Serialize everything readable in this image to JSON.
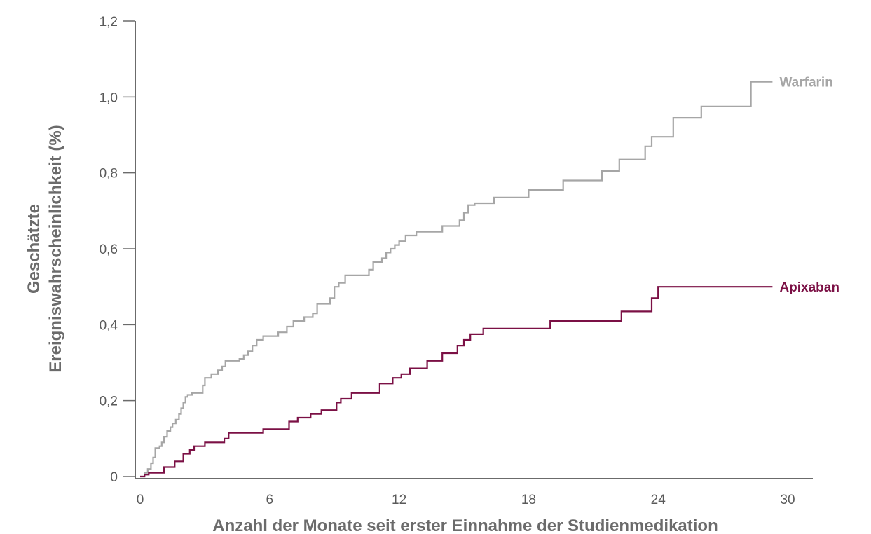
{
  "chart_data": {
    "type": "line",
    "step": true,
    "xlabel": "Anzahl der Monate seit erster Einnahme der Studienmedikation",
    "ylabel": [
      "Geschätzte",
      "Ereigniswahrscheinlichkeit (%)"
    ],
    "xlim": [
      0,
      30
    ],
    "ylim": [
      0,
      1.2
    ],
    "x_ticks": [
      {
        "value": 0,
        "label": "0"
      },
      {
        "value": 6,
        "label": "6"
      },
      {
        "value": 12,
        "label": "12"
      },
      {
        "value": 18,
        "label": "18"
      },
      {
        "value": 24,
        "label": "24"
      },
      {
        "value": 30,
        "label": "30"
      }
    ],
    "y_ticks": [
      {
        "value": 0,
        "label": "0"
      },
      {
        "value": 0.2,
        "label": "0,2"
      },
      {
        "value": 0.4,
        "label": "0,4"
      },
      {
        "value": 0.6,
        "label": "0,6"
      },
      {
        "value": 0.8,
        "label": "0,8"
      },
      {
        "value": 1.0,
        "label": "1,0"
      },
      {
        "value": 1.2,
        "label": "1,2"
      }
    ],
    "grid": false,
    "series": [
      {
        "name": "Warfarin",
        "color": "#a6a6a6",
        "points": [
          [
            0,
            0
          ],
          [
            0.2,
            0.01
          ],
          [
            0.35,
            0.02
          ],
          [
            0.5,
            0.035
          ],
          [
            0.6,
            0.05
          ],
          [
            0.7,
            0.075
          ],
          [
            0.9,
            0.08
          ],
          [
            1.0,
            0.09
          ],
          [
            1.1,
            0.105
          ],
          [
            1.25,
            0.12
          ],
          [
            1.4,
            0.13
          ],
          [
            1.5,
            0.14
          ],
          [
            1.65,
            0.15
          ],
          [
            1.8,
            0.165
          ],
          [
            1.9,
            0.18
          ],
          [
            2.0,
            0.195
          ],
          [
            2.1,
            0.21
          ],
          [
            2.2,
            0.215
          ],
          [
            2.4,
            0.22
          ],
          [
            2.9,
            0.24
          ],
          [
            3.0,
            0.26
          ],
          [
            3.3,
            0.27
          ],
          [
            3.6,
            0.28
          ],
          [
            3.8,
            0.29
          ],
          [
            3.95,
            0.305
          ],
          [
            4.6,
            0.31
          ],
          [
            4.8,
            0.32
          ],
          [
            5.0,
            0.33
          ],
          [
            5.2,
            0.345
          ],
          [
            5.4,
            0.36
          ],
          [
            5.7,
            0.37
          ],
          [
            6.4,
            0.38
          ],
          [
            6.8,
            0.395
          ],
          [
            7.1,
            0.41
          ],
          [
            7.6,
            0.42
          ],
          [
            8.0,
            0.43
          ],
          [
            8.2,
            0.455
          ],
          [
            8.8,
            0.47
          ],
          [
            9.0,
            0.5
          ],
          [
            9.2,
            0.51
          ],
          [
            9.5,
            0.53
          ],
          [
            10.6,
            0.545
          ],
          [
            10.8,
            0.565
          ],
          [
            11.2,
            0.575
          ],
          [
            11.4,
            0.59
          ],
          [
            11.6,
            0.6
          ],
          [
            11.8,
            0.61
          ],
          [
            12.0,
            0.62
          ],
          [
            12.3,
            0.635
          ],
          [
            12.8,
            0.645
          ],
          [
            14.0,
            0.66
          ],
          [
            14.8,
            0.675
          ],
          [
            15.0,
            0.695
          ],
          [
            15.2,
            0.715
          ],
          [
            15.5,
            0.72
          ],
          [
            16.4,
            0.735
          ],
          [
            18.0,
            0.755
          ],
          [
            19.6,
            0.78
          ],
          [
            21.4,
            0.805
          ],
          [
            22.2,
            0.835
          ],
          [
            23.4,
            0.87
          ],
          [
            23.7,
            0.895
          ],
          [
            24.7,
            0.945
          ],
          [
            26.0,
            0.975
          ],
          [
            28.3,
            1.04
          ],
          [
            29.3,
            1.04
          ]
        ]
      },
      {
        "name": "Apixaban",
        "color": "#7b1045",
        "points": [
          [
            0,
            0
          ],
          [
            0.2,
            0.005
          ],
          [
            0.4,
            0.01
          ],
          [
            1.1,
            0.025
          ],
          [
            1.6,
            0.04
          ],
          [
            2.0,
            0.06
          ],
          [
            2.3,
            0.07
          ],
          [
            2.5,
            0.08
          ],
          [
            3.0,
            0.09
          ],
          [
            3.9,
            0.1
          ],
          [
            4.1,
            0.115
          ],
          [
            5.7,
            0.125
          ],
          [
            6.9,
            0.145
          ],
          [
            7.3,
            0.155
          ],
          [
            7.9,
            0.165
          ],
          [
            8.4,
            0.175
          ],
          [
            9.1,
            0.195
          ],
          [
            9.3,
            0.205
          ],
          [
            9.8,
            0.22
          ],
          [
            11.1,
            0.245
          ],
          [
            11.7,
            0.26
          ],
          [
            12.1,
            0.27
          ],
          [
            12.5,
            0.285
          ],
          [
            13.3,
            0.305
          ],
          [
            14.0,
            0.325
          ],
          [
            14.7,
            0.345
          ],
          [
            15.0,
            0.36
          ],
          [
            15.3,
            0.375
          ],
          [
            15.9,
            0.39
          ],
          [
            19.0,
            0.41
          ],
          [
            22.3,
            0.435
          ],
          [
            23.7,
            0.47
          ],
          [
            24.0,
            0.5
          ],
          [
            29.3,
            0.5
          ]
        ]
      }
    ],
    "legend": "inline-right"
  }
}
